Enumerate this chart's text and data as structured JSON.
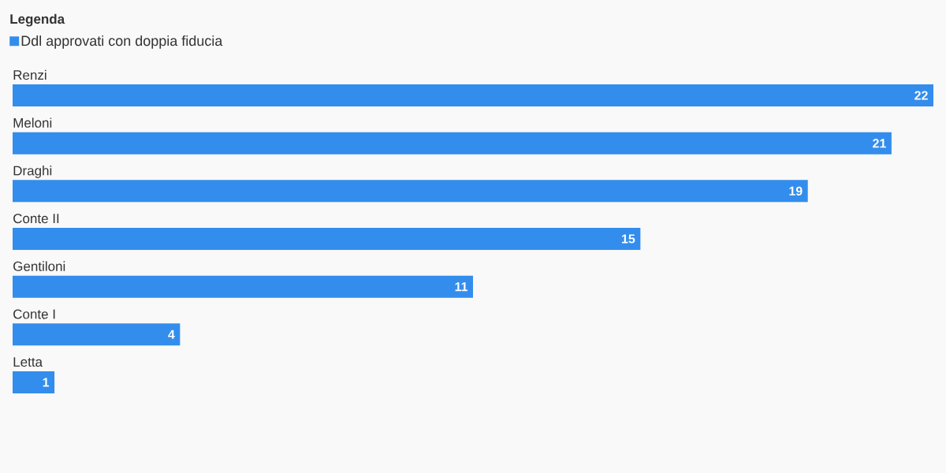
{
  "chart_data": {
    "type": "bar",
    "orientation": "horizontal",
    "legend_title": "Legenda",
    "legend": "top left",
    "data_labels": true,
    "categories": [
      "Renzi",
      "Meloni",
      "Draghi",
      "Conte II",
      "Gentiloni",
      "Conte I",
      "Letta"
    ],
    "series": [
      {
        "name": "Ddl approvati con doppia fiducia",
        "color": "#338ded",
        "values": [
          22,
          21,
          19,
          15,
          11,
          4,
          1
        ]
      }
    ]
  }
}
